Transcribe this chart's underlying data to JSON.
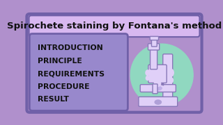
{
  "bg_color": "#b090cc",
  "outer_border_color": "#7060a8",
  "title": "Spirochete staining by Fontana's method",
  "title_box_color": "#d8b8f0",
  "title_font_size": 9.5,
  "menu_box_color": "#9888cc",
  "menu_box_border": "#7060a8",
  "menu_items": [
    "INTRODUCTION",
    "PRINCIPLE",
    "REQUIREMENTS",
    "PROCEDURE",
    "RESULT"
  ],
  "menu_font_size": 7.8,
  "menu_text_color": "#111111",
  "circle_color": "#90d8c0",
  "microscope_fill": "#e0d0f8",
  "microscope_outline": "#8878b8",
  "microscope_dark": "#9888c8"
}
